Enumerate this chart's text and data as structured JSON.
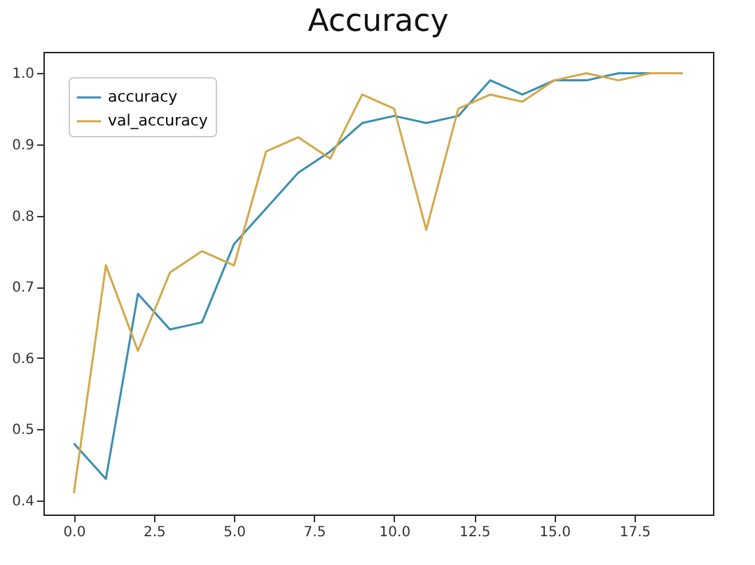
{
  "chart_data": {
    "type": "line",
    "title": "Accuracy",
    "x": [
      0,
      1,
      2,
      3,
      4,
      5,
      6,
      7,
      8,
      9,
      10,
      11,
      12,
      13,
      14,
      15,
      16,
      17,
      18,
      19
    ],
    "series": [
      {
        "name": "accuracy",
        "color": "#3a8fb0",
        "values": [
          0.48,
          0.43,
          0.69,
          0.64,
          0.65,
          0.76,
          0.81,
          0.86,
          0.89,
          0.93,
          0.94,
          0.93,
          0.94,
          0.99,
          0.97,
          0.99,
          0.99,
          1.0,
          1.0,
          1.0
        ]
      },
      {
        "name": "val_accuracy",
        "color": "#d4a84a",
        "values": [
          0.41,
          0.73,
          0.61,
          0.72,
          0.75,
          0.73,
          0.89,
          0.91,
          0.88,
          0.97,
          0.95,
          0.78,
          0.95,
          0.97,
          0.96,
          0.99,
          1.0,
          0.99,
          1.0,
          1.0
        ]
      }
    ],
    "xlim": [
      -0.95,
      19.95
    ],
    "ylim": [
      0.38,
      1.03
    ],
    "xticks": [
      {
        "value": 0,
        "label": "0.0"
      },
      {
        "value": 2.5,
        "label": "2.5"
      },
      {
        "value": 5,
        "label": "5.0"
      },
      {
        "value": 7.5,
        "label": "7.5"
      },
      {
        "value": 10,
        "label": "10.0"
      },
      {
        "value": 12.5,
        "label": "12.5"
      },
      {
        "value": 15,
        "label": "15.0"
      },
      {
        "value": 17.5,
        "label": "17.5"
      }
    ],
    "yticks": [
      0.4,
      0.5,
      0.6,
      0.7,
      0.8,
      0.9,
      {
        "value": 1,
        "label": "1.0"
      }
    ],
    "legend": "top left",
    "grid": false,
    "marker": "none",
    "line_style": "solid"
  }
}
